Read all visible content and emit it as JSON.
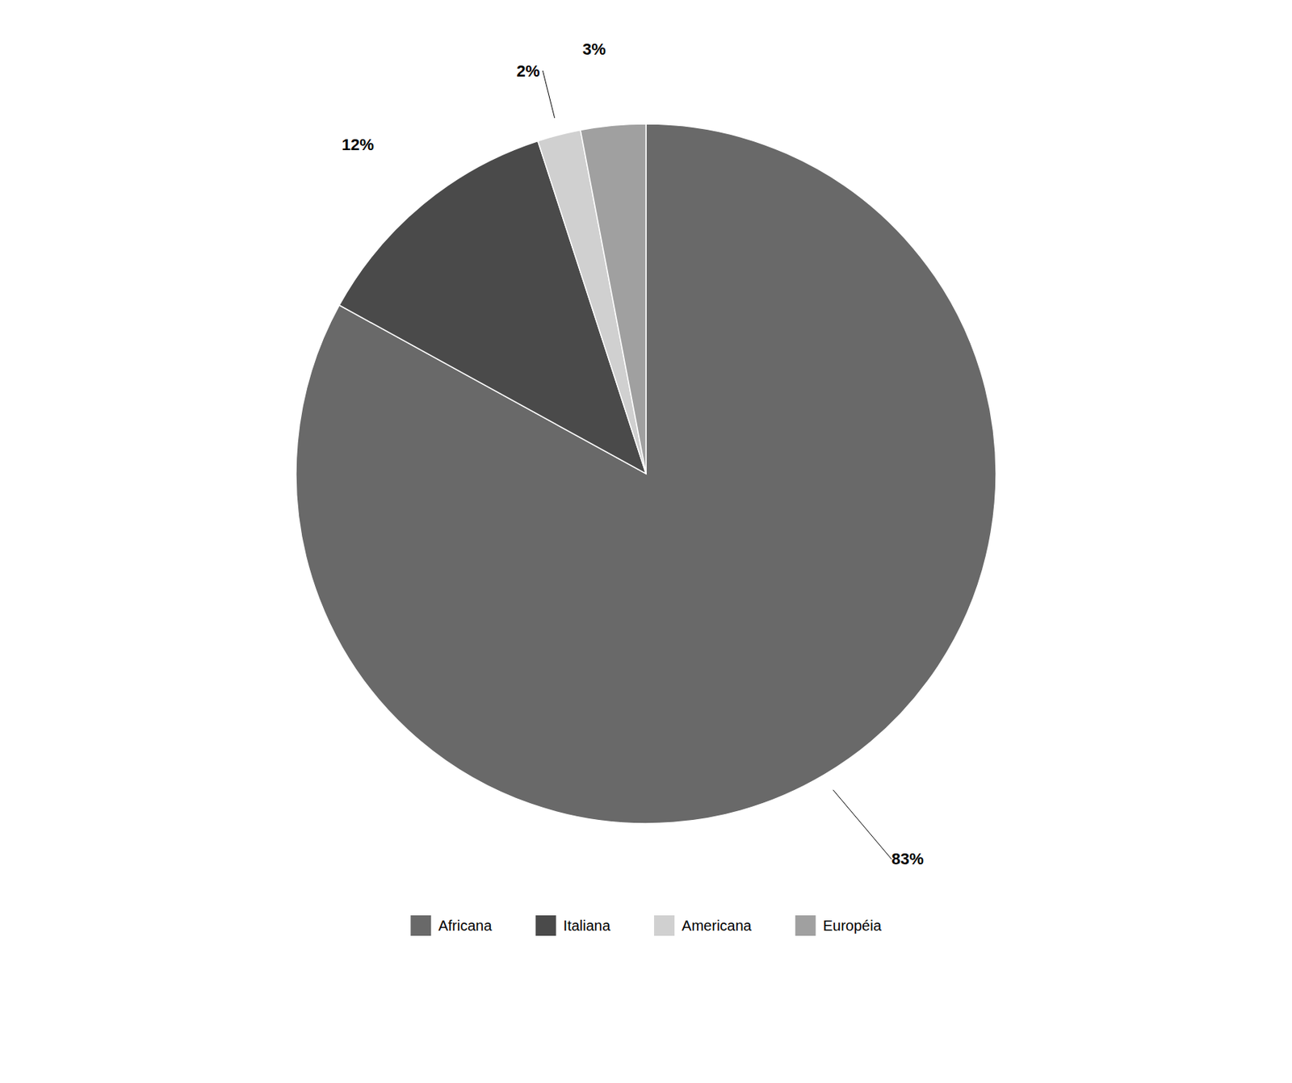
{
  "chart_data": {
    "type": "pie",
    "categories": [
      "Africana",
      "Italiana",
      "Americana",
      "Européia"
    ],
    "values": [
      83,
      12,
      2,
      3
    ],
    "value_labels": [
      "83%",
      "12%",
      "2%",
      "3%"
    ],
    "colors": [
      "#696969",
      "#4a4a4a",
      "#d0d0d0",
      "#a0a0a0"
    ],
    "data_labels": true,
    "legend": "bottom"
  }
}
